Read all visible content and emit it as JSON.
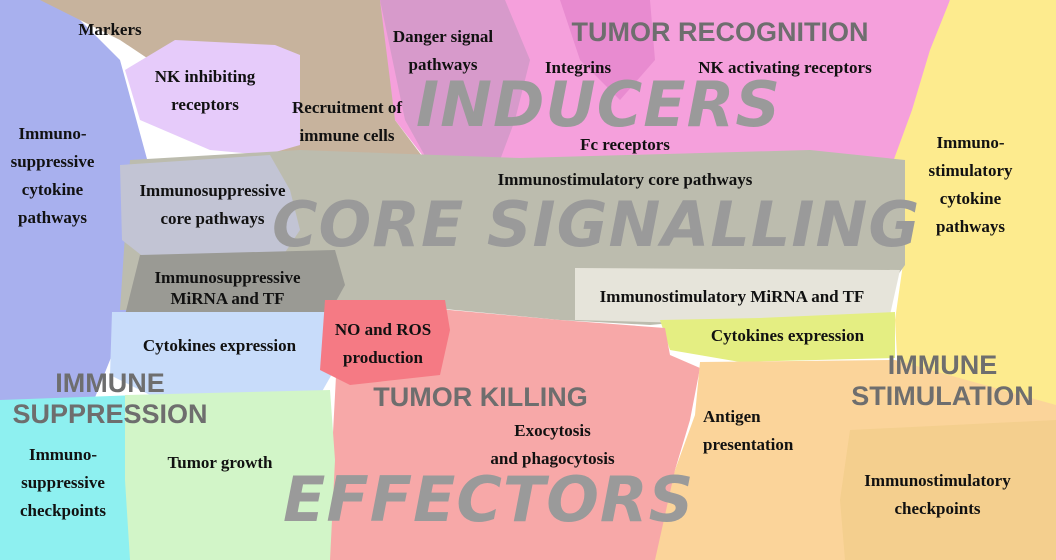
{
  "big_titles": {
    "inducers": "INDUCERS",
    "core": "CORE SIGNALLING",
    "effectors": "EFFECTORS"
  },
  "categories": {
    "tumor_recognition": "TUMOR RECOGNITION",
    "immune_suppression": "IMMUNE\nSUPPRESSION",
    "tumor_killing": "TUMOR KILLING",
    "immune_stimulation": "IMMUNE\nSTIMULATION"
  },
  "labels": {
    "markers": "Markers",
    "nk_inhibiting": "NK inhibiting\nreceptors",
    "danger_signal": "Danger signal\npathways",
    "recruitment": "Recruitment of\nimmune cells",
    "integrins": "Integrins",
    "nk_activating": "NK  activating receptors",
    "fc_receptors": "Fc receptors",
    "immunosuppressive_cytokine": "Immuno-\nsuppressive\ncytokine\npathways",
    "immunostimulatory_cytokine": "Immuno-\nstimulatory\ncytokine\npathways",
    "immunosuppressive_core": "Immunosuppressive\ncore pathways",
    "immunostimulatory_core": "Immunostimulatory core pathways",
    "immunosuppressive_mirna": "Immunosuppressive\nMiRNA and TF",
    "immunostimulatory_mirna": "Immunostimulatory MiRNA and TF",
    "cytokines_left": "Cytokines expression",
    "cytokines_right": "Cytokines expression",
    "no_ros": "NO and ROS\nproduction",
    "exocytosis": "Exocytosis\nand  phagocytosis",
    "antigen": "Antigen\npresentation",
    "immunosuppressive_checkpoints": "Immuno-\nsuppressive\ncheckpoints",
    "tumor_growth": "Tumor growth",
    "immunostimulatory_checkpoints": "Immunostimulatory\ncheckpoints"
  },
  "colors": {
    "immune_suppression_blue": "#a8b0ee",
    "tumor_recognition_pink": "#f5a0dc",
    "immune_stimulation_yellow": "#fdeb8e",
    "core_gray": "#bcbcae",
    "tumor_killing_red": "#f7a8a8",
    "stimulation_orange": "#fbd49a",
    "suppression_cyan": "#8ef0f0",
    "tumor_growth_green": "#d2f5c8",
    "markers_tan": "#c7b39d",
    "nk_inhibiting_lavender": "#e6cbfa",
    "mauve": "#d79acb",
    "light_blue": "#c8dcfa",
    "lime": "#e4ee82",
    "dark_gray": "#9a9a94",
    "pale": "#e6e4da",
    "no_ros_pink": "#f57a84",
    "title_gray": "#9a9a9a",
    "category_gray": "#6e6e6e"
  }
}
